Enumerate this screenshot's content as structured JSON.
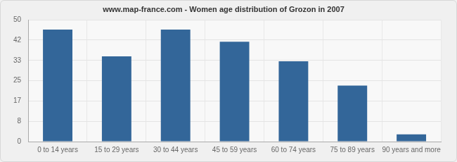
{
  "chart_data": {
    "type": "bar",
    "title": "www.map-france.com - Women age distribution of Grozon in 2007",
    "categories": [
      "0 to 14 years",
      "15 to 29 years",
      "30 to 44 years",
      "45 to 59 years",
      "60 to 74 years",
      "75 to 89 years",
      "90 years and more"
    ],
    "values": [
      46,
      35,
      46,
      41,
      33,
      23,
      3
    ],
    "color": "#336699",
    "ylim": [
      0,
      50
    ],
    "yticks": [
      0,
      {
        "value": 8.333,
        "label": "8"
      },
      {
        "value": 16.667,
        "label": "17"
      },
      25,
      {
        "value": 33.333,
        "label": "33"
      },
      {
        "value": 41.667,
        "label": "42"
      },
      50
    ],
    "grid": true
  }
}
